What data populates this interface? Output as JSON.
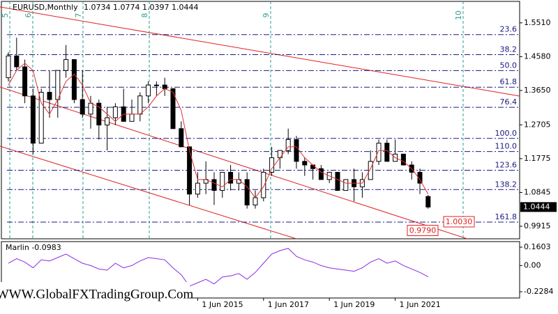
{
  "chart_data": [
    {
      "type": "candlestick",
      "title": "EURUSD,Monthly",
      "ohlc_text": "1.0734 1.0774 1.0397 1.0444",
      "categories": [
        null,
        null,
        null,
        null,
        null,
        null,
        null,
        null,
        null,
        null,
        null,
        null,
        null,
        null,
        null,
        null,
        null,
        null,
        null,
        null,
        null,
        null,
        null,
        "1 Jun 2015",
        null,
        null,
        null,
        null,
        null,
        null,
        null,
        "1 Jun 2017",
        null,
        null,
        null,
        null,
        null,
        null,
        null,
        "1 Jun 2019",
        null,
        null,
        null,
        null,
        null,
        null,
        null,
        "1 Jun 2021",
        null,
        null,
        null,
        null
      ],
      "open": [
        1.4,
        1.46,
        1.43,
        1.35,
        1.22,
        1.36,
        1.34,
        1.42,
        1.45,
        1.34,
        1.3,
        1.33,
        1.27,
        1.29,
        1.32,
        1.28,
        1.3,
        1.35,
        1.38,
        1.38,
        1.37,
        1.26,
        1.21,
        1.08,
        1.11,
        1.12,
        1.09,
        1.14,
        1.11,
        1.12,
        1.05,
        1.07,
        1.14,
        1.18,
        1.2,
        1.23,
        1.17,
        1.16,
        1.15,
        1.12,
        1.14,
        1.09,
        1.12,
        1.1,
        1.12,
        1.17,
        1.22,
        1.17,
        1.19,
        1.16,
        1.14,
        1.0734
      ],
      "high": [
        1.47,
        1.51,
        1.45,
        1.37,
        1.37,
        1.42,
        1.42,
        1.49,
        1.45,
        1.42,
        1.35,
        1.34,
        1.32,
        1.33,
        1.37,
        1.34,
        1.36,
        1.39,
        1.39,
        1.4,
        1.37,
        1.28,
        1.21,
        1.14,
        1.17,
        1.14,
        1.14,
        1.16,
        1.14,
        1.14,
        1.09,
        1.15,
        1.21,
        1.2,
        1.26,
        1.24,
        1.18,
        1.16,
        1.16,
        1.14,
        1.14,
        1.12,
        1.15,
        1.14,
        1.2,
        1.23,
        1.23,
        1.23,
        1.19,
        1.17,
        1.15,
        1.0774
      ],
      "low": [
        1.39,
        1.42,
        1.33,
        1.19,
        1.22,
        1.29,
        1.29,
        1.4,
        1.33,
        1.29,
        1.26,
        1.23,
        1.2,
        1.27,
        1.28,
        1.28,
        1.28,
        1.33,
        1.35,
        1.35,
        1.26,
        1.21,
        1.05,
        1.07,
        1.08,
        1.05,
        1.07,
        1.09,
        1.09,
        1.04,
        1.04,
        1.06,
        1.13,
        1.15,
        1.19,
        1.15,
        1.13,
        1.12,
        1.12,
        1.11,
        1.09,
        1.09,
        1.06,
        1.07,
        1.12,
        1.16,
        1.17,
        1.17,
        1.16,
        1.12,
        1.08,
        1.0397
      ],
      "close": [
        1.46,
        1.43,
        1.35,
        1.22,
        1.36,
        1.34,
        1.42,
        1.45,
        1.34,
        1.3,
        1.33,
        1.27,
        1.29,
        1.32,
        1.28,
        1.3,
        1.35,
        1.38,
        1.38,
        1.37,
        1.26,
        1.21,
        1.08,
        1.11,
        1.12,
        1.09,
        1.14,
        1.11,
        1.12,
        1.05,
        1.07,
        1.14,
        1.18,
        1.2,
        1.23,
        1.17,
        1.16,
        1.15,
        1.12,
        1.14,
        1.09,
        1.12,
        1.1,
        1.12,
        1.17,
        1.22,
        1.17,
        1.19,
        1.16,
        1.14,
        1.11,
        1.0444
      ],
      "ma": {
        "color": "#e03030",
        "values": [
          1.38,
          1.42,
          1.44,
          1.42,
          1.33,
          1.3,
          1.34,
          1.39,
          1.41,
          1.38,
          1.33,
          1.32,
          1.3,
          1.28,
          1.3,
          1.3,
          1.3,
          1.32,
          1.35,
          1.37,
          1.36,
          1.31,
          1.2,
          1.12,
          1.12,
          1.11,
          1.1,
          1.12,
          1.12,
          1.1,
          1.07,
          1.1,
          1.15,
          1.18,
          1.21,
          1.21,
          1.18,
          1.16,
          1.14,
          1.13,
          1.12,
          1.11,
          1.11,
          1.11,
          1.15,
          1.2,
          1.2,
          1.18,
          1.17,
          1.15,
          1.12,
          1.08
        ]
      },
      "ylim": [
        0.957,
        1.61
      ],
      "yticks": [
        {
          "value": 1.551,
          "label": "1.5510"
        },
        {
          "value": 1.458,
          "label": "1.4580"
        },
        {
          "value": 1.365,
          "label": "1.3650"
        },
        {
          "value": 1.2705,
          "label": "1.2705"
        },
        {
          "value": 1.1775,
          "label": "1.1775"
        },
        {
          "value": 1.0845,
          "label": "1.0845"
        },
        {
          "value": 0.9915,
          "label": "0.9915"
        }
      ],
      "last_price": 1.0444,
      "fibo_levels": [
        {
          "label": "23.6",
          "price": 1.5186
        },
        {
          "label": "38.2",
          "price": 1.4635
        },
        {
          "label": "50.0",
          "price": 1.4197
        },
        {
          "label": "61.8",
          "price": 1.374
        },
        {
          "label": "76.4",
          "price": 1.3188
        },
        {
          "label": "100.0",
          "price": 1.2332
        },
        {
          "label": "110.0",
          "price": 1.197
        },
        {
          "label": "123.6",
          "price": 1.1457
        },
        {
          "label": "138.2",
          "price": 1.0924
        },
        {
          "label": "161.8",
          "price": 1.003
        }
      ],
      "price_boxes": [
        {
          "value": 0.979,
          "label": "0.9790"
        },
        {
          "value": 1.003,
          "label": "1.0030"
        }
      ],
      "waves": [
        "5",
        "6",
        "7",
        "8",
        "9",
        "10"
      ],
      "up_color": "#000000",
      "down_color": "#000000"
    },
    {
      "type": "line",
      "title": "Marlin -0.0983",
      "color": "#8a2be2",
      "values": [
        0.02,
        0.06,
        0.03,
        -0.02,
        0.05,
        0.04,
        0.07,
        0.1,
        0.06,
        0.02,
        0.0,
        -0.03,
        -0.04,
        0.02,
        -0.02,
        0.0,
        0.04,
        0.07,
        0.06,
        0.05,
        -0.02,
        -0.08,
        -0.18,
        -0.15,
        -0.12,
        -0.16,
        -0.1,
        -0.09,
        -0.07,
        -0.12,
        -0.06,
        0.02,
        0.1,
        0.13,
        0.15,
        0.08,
        0.05,
        0.03,
        0.0,
        -0.02,
        -0.03,
        -0.04,
        -0.05,
        -0.02,
        0.03,
        0.06,
        0.02,
        0.04,
        0.0,
        -0.03,
        -0.06,
        -0.0983
      ],
      "ylim": [
        -0.283,
        0.209
      ],
      "yticks": [
        {
          "value": 0.1603,
          "label": "0.1603"
        },
        {
          "value": 0,
          "label": "0.00"
        },
        {
          "value": -0.2284,
          "label": "-0.2284"
        }
      ]
    }
  ],
  "watermark": "WWW.GlobalFXTradingGroup.Com"
}
